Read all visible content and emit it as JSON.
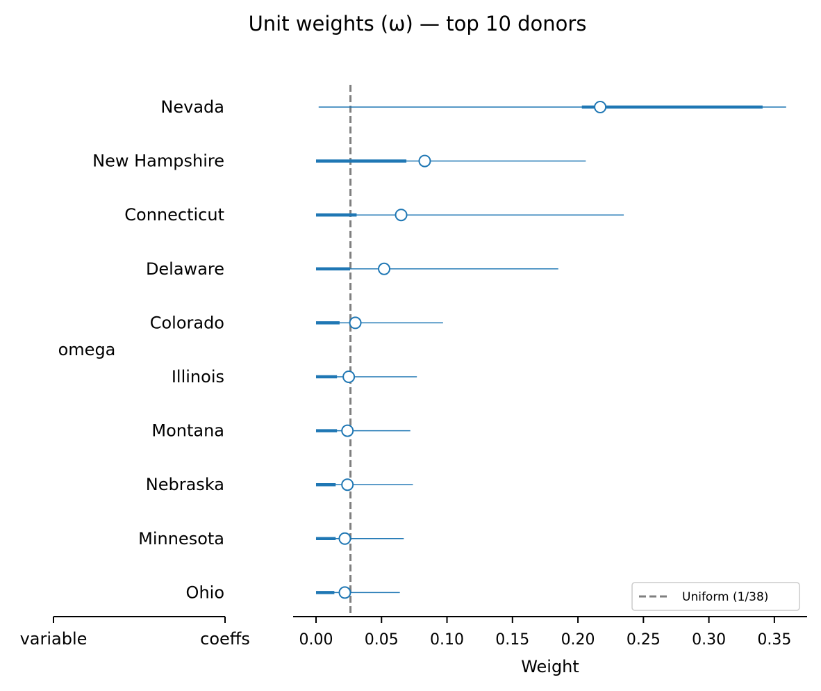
{
  "chart_data": {
    "type": "forest",
    "title": "Unit weights (ω) — top 10 donors",
    "xlabel": "Weight",
    "ylabel": "",
    "xlim": [
      -0.0175,
      0.375
    ],
    "xticks": [
      0.0,
      0.05,
      0.1,
      0.15,
      0.2,
      0.25,
      0.3,
      0.35
    ],
    "xtick_labels": [
      "0.00",
      "0.05",
      "0.10",
      "0.15",
      "0.20",
      "0.25",
      "0.30",
      "0.35"
    ],
    "grid": false,
    "legend_position": "bottom-right",
    "group_label": "omega",
    "left_axis_labels": [
      "variable",
      "coeffs"
    ],
    "reference_line": {
      "label": "Uniform (1/38)",
      "value": 0.0263,
      "color": "#7f7f7f",
      "style": "dashed"
    },
    "series_color": "#1f77b4",
    "rows": [
      {
        "label": "Nevada",
        "mean": 0.217,
        "hdi_low": 0.002,
        "hdi_high": 0.359,
        "iqr_low": 0.203,
        "iqr_high": 0.341
      },
      {
        "label": "New Hampshire",
        "mean": 0.083,
        "hdi_low": 0.0,
        "hdi_high": 0.206,
        "iqr_low": 0.0,
        "iqr_high": 0.069
      },
      {
        "label": "Connecticut",
        "mean": 0.065,
        "hdi_low": 0.0,
        "hdi_high": 0.235,
        "iqr_low": 0.0,
        "iqr_high": 0.031
      },
      {
        "label": "Delaware",
        "mean": 0.052,
        "hdi_low": 0.0,
        "hdi_high": 0.185,
        "iqr_low": 0.0,
        "iqr_high": 0.026
      },
      {
        "label": "Colorado",
        "mean": 0.03,
        "hdi_low": 0.0,
        "hdi_high": 0.097,
        "iqr_low": 0.0,
        "iqr_high": 0.018
      },
      {
        "label": "Illinois",
        "mean": 0.025,
        "hdi_low": 0.0,
        "hdi_high": 0.077,
        "iqr_low": 0.0,
        "iqr_high": 0.016
      },
      {
        "label": "Montana",
        "mean": 0.024,
        "hdi_low": 0.0,
        "hdi_high": 0.072,
        "iqr_low": 0.0,
        "iqr_high": 0.016
      },
      {
        "label": "Nebraska",
        "mean": 0.024,
        "hdi_low": 0.0,
        "hdi_high": 0.074,
        "iqr_low": 0.0,
        "iqr_high": 0.015
      },
      {
        "label": "Minnesota",
        "mean": 0.022,
        "hdi_low": 0.0,
        "hdi_high": 0.067,
        "iqr_low": 0.0,
        "iqr_high": 0.015
      },
      {
        "label": "Ohio",
        "mean": 0.022,
        "hdi_low": 0.0,
        "hdi_high": 0.064,
        "iqr_low": 0.0,
        "iqr_high": 0.014
      }
    ]
  }
}
